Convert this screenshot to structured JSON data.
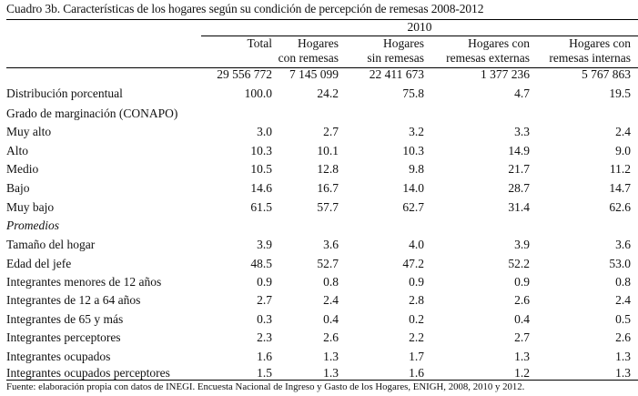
{
  "title": "Cuadro 3b. Características de los hogares según su condición de percepción de remesas 2008-2012",
  "year": "2010",
  "columns": [
    {
      "line1": "",
      "line2": "Total"
    },
    {
      "line1": "Hogares",
      "line2": "con remesas"
    },
    {
      "line1": "Hogares",
      "line2": "sin remesas"
    },
    {
      "line1": "Hogares con",
      "line2": "remesas externas"
    },
    {
      "line1": "Hogares con",
      "line2": "remesas internas"
    }
  ],
  "rows": [
    {
      "label": "",
      "values": [
        "29 556 772",
        "7 145 099",
        "22 411 673",
        "1 377 236",
        "5 767 863"
      ]
    },
    {
      "label": "Distribución porcentual",
      "values": [
        "100.0",
        "24.2",
        "75.8",
        "4.7",
        "19.5"
      ]
    },
    {
      "label": "Grado de marginación (CONAPO)",
      "values": [
        "",
        "",
        "",
        "",
        ""
      ]
    },
    {
      "label": "Muy alto",
      "values": [
        "3.0",
        "2.7",
        "3.2",
        "3.3",
        "2.4"
      ]
    },
    {
      "label": "Alto",
      "values": [
        "10.3",
        "10.1",
        "10.3",
        "14.9",
        "9.0"
      ]
    },
    {
      "label": "Medio",
      "values": [
        "10.5",
        "12.8",
        "9.8",
        "21.7",
        "11.2"
      ]
    },
    {
      "label": "Bajo",
      "values": [
        "14.6",
        "16.7",
        "14.0",
        "28.7",
        "14.7"
      ]
    },
    {
      "label": "Muy bajo",
      "values": [
        "61.5",
        "57.7",
        "62.7",
        "31.4",
        "62.6"
      ]
    },
    {
      "label": "Promedios",
      "italic": true,
      "values": [
        "",
        "",
        "",
        "",
        ""
      ]
    },
    {
      "label": "Tamaño del hogar",
      "values": [
        "3.9",
        "3.6",
        "4.0",
        "3.9",
        "3.6"
      ]
    },
    {
      "label": "Edad del jefe",
      "values": [
        "48.5",
        "52.7",
        "47.2",
        "52.2",
        "53.0"
      ]
    },
    {
      "label": "Integrantes menores de 12 años",
      "values": [
        "0.9",
        "0.8",
        "0.9",
        "0.9",
        "0.8"
      ]
    },
    {
      "label": "Integrantes de 12 a 64 años",
      "values": [
        "2.7",
        "2.4",
        "2.8",
        "2.6",
        "2.4"
      ]
    },
    {
      "label": "Integrantes de 65 y más",
      "values": [
        "0.3",
        "0.4",
        "0.2",
        "0.4",
        "0.5"
      ]
    },
    {
      "label": "Integrantes perceptores",
      "values": [
        "2.3",
        "2.6",
        "2.2",
        "2.7",
        "2.6"
      ]
    },
    {
      "label": "Integrantes ocupados",
      "values": [
        "1.6",
        "1.3",
        "1.7",
        "1.3",
        "1.3"
      ]
    },
    {
      "label": "Integrantes ocupados perceptores",
      "values": [
        "1.5",
        "1.3",
        "1.6",
        "1.2",
        "1.3"
      ]
    }
  ],
  "source": "Fuente: elaboración propia con datos de INEGI. Encuesta Nacional de Ingreso y Gasto de los Hogares, ENIGH, 2008, 2010 y 2012."
}
